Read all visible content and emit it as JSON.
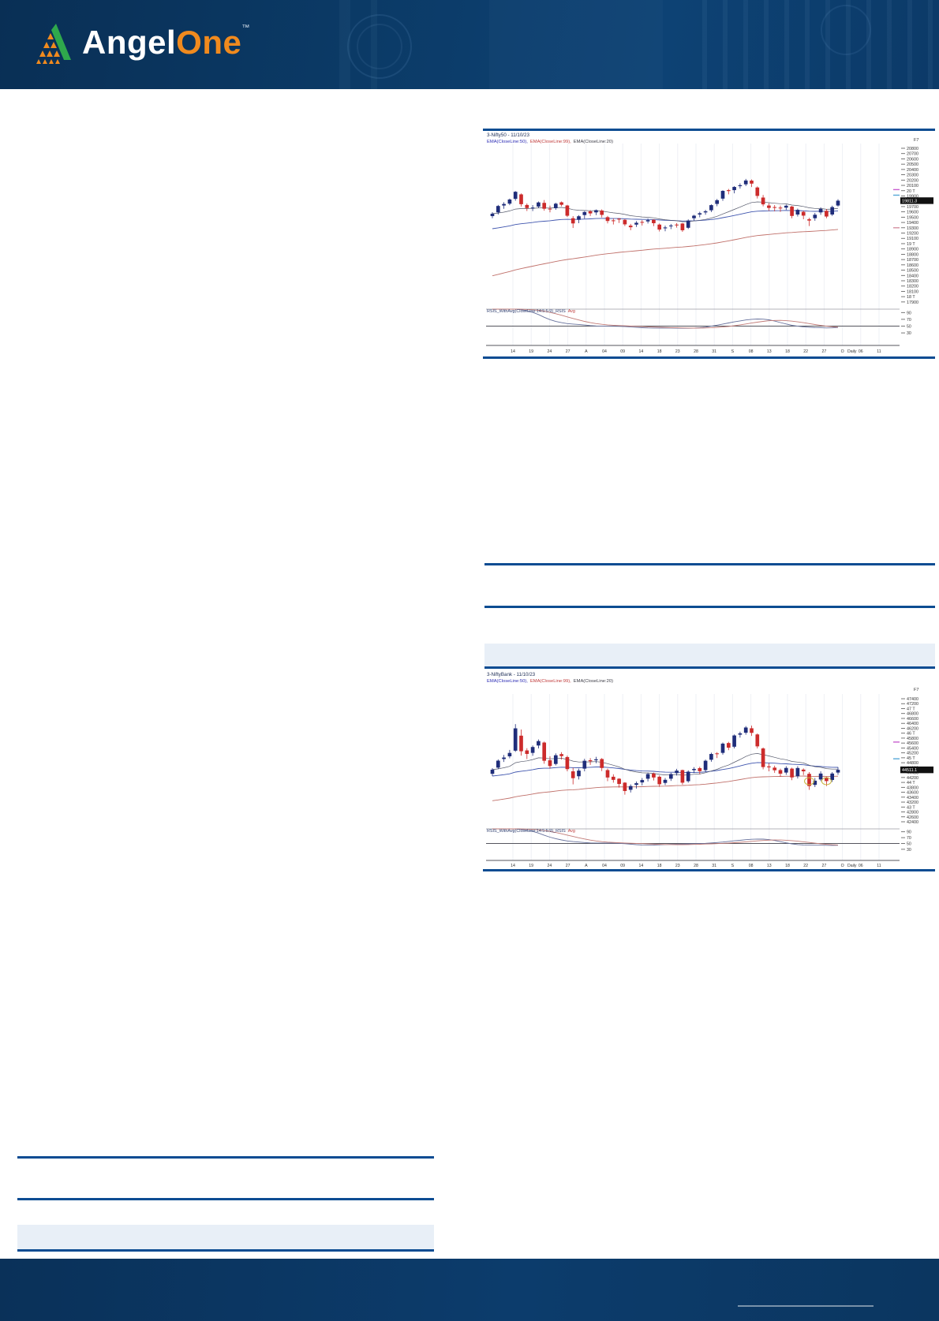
{
  "header": {
    "brand_angel": "Angel",
    "brand_one": "One",
    "tm": "™"
  },
  "chart_data": [
    {
      "type": "candlestick",
      "title": "3-Nifty50 - 11/10/23",
      "corner_label": "F7",
      "interval_label": "Daily",
      "last_price": "19811.3",
      "legend": [
        {
          "text": "EMA(CloseLine:50),",
          "color": "#2b2bb4"
        },
        {
          "text": "EMA(CloseLine:99),",
          "color": "#c03a3a"
        },
        {
          "text": "EMA(CloseLine:20)",
          "color": "#3c3c46"
        }
      ],
      "ylim": [
        17900,
        20850
      ],
      "y_tick_start": 20800,
      "y_tick_step": 100,
      "y_tick_count": 30,
      "x_labels": [
        "14",
        "19",
        "24",
        "27",
        "A",
        "04",
        "09",
        "14",
        "18",
        "23",
        "28",
        "31",
        "S",
        "08",
        "13",
        "18",
        "22",
        "27",
        "O",
        "06",
        "11"
      ],
      "rsi_label": "RSIS_WithAvg(CloseLine:14:5:5:9)_RSIS",
      "rsi_avg_label": "Avg",
      "rsi_ticks": [
        90,
        70,
        50,
        30
      ],
      "axis_markers": [
        {
          "price": 20020,
          "color": "#c95fd0"
        },
        {
          "price": 19915,
          "color": "#58a8d8"
        },
        {
          "price": 19300,
          "color": "#d490a0"
        }
      ],
      "ema_seeds": {
        "e50": 19270,
        "e99": 18370
      },
      "candles": [
        [
          19520,
          19595,
          19480,
          19565
        ],
        [
          19590,
          19731,
          19550,
          19711
        ],
        [
          19720,
          19782,
          19658,
          19749
        ],
        [
          19755,
          19851,
          19727,
          19833
        ],
        [
          19845,
          19992,
          19810,
          19979
        ],
        [
          19930,
          19948,
          19700,
          19745
        ],
        [
          19730,
          19758,
          19616,
          19672
        ],
        [
          19680,
          19729,
          19615,
          19681
        ],
        [
          19700,
          19795,
          19672,
          19778
        ],
        [
          19770,
          19823,
          19622,
          19659
        ],
        [
          19660,
          19717,
          19591,
          19646
        ],
        [
          19670,
          19772,
          19639,
          19754
        ],
        [
          19780,
          19795,
          19704,
          19734
        ],
        [
          19720,
          19732,
          19504,
          19527
        ],
        [
          19480,
          19520,
          19296,
          19382
        ],
        [
          19450,
          19538,
          19387,
          19517
        ],
        [
          19540,
          19615,
          19471,
          19597
        ],
        [
          19610,
          19634,
          19522,
          19571
        ],
        [
          19590,
          19645,
          19539,
          19632
        ],
        [
          19625,
          19647,
          19495,
          19543
        ],
        [
          19500,
          19524,
          19383,
          19428
        ],
        [
          19440,
          19477,
          19362,
          19435
        ],
        [
          19470,
          19481,
          19390,
          19465
        ],
        [
          19450,
          19462,
          19333,
          19365
        ],
        [
          19340,
          19373,
          19254,
          19310
        ],
        [
          19360,
          19426,
          19316,
          19394
        ],
        [
          19410,
          19443,
          19342,
          19396
        ],
        [
          19420,
          19474,
          19380,
          19444
        ],
        [
          19450,
          19459,
          19330,
          19386
        ],
        [
          19360,
          19380,
          19230,
          19266
        ],
        [
          19290,
          19340,
          19234,
          19306
        ],
        [
          19330,
          19372,
          19275,
          19342
        ],
        [
          19360,
          19388,
          19302,
          19347
        ],
        [
          19380,
          19390,
          19223,
          19253
        ],
        [
          19300,
          19458,
          19276,
          19435
        ],
        [
          19480,
          19545,
          19433,
          19528
        ],
        [
          19550,
          19603,
          19497,
          19574
        ],
        [
          19590,
          19638,
          19546,
          19611
        ],
        [
          19630,
          19741,
          19597,
          19727
        ],
        [
          19750,
          19843,
          19706,
          19820
        ],
        [
          19850,
          20008,
          19809,
          19996
        ],
        [
          20010,
          20033,
          19931,
          19993
        ],
        [
          20010,
          20085,
          19950,
          20070
        ],
        [
          20085,
          20137,
          20039,
          20103
        ],
        [
          20120,
          20222,
          20087,
          20192
        ],
        [
          20190,
          20213,
          20069,
          20133
        ],
        [
          20060,
          20080,
          19852,
          19901
        ],
        [
          19870,
          19918,
          19704,
          19742
        ],
        [
          19720,
          19762,
          19621,
          19674
        ],
        [
          19690,
          19729,
          19610,
          19675
        ],
        [
          19680,
          19720,
          19601,
          19665
        ],
        [
          19680,
          19738,
          19637,
          19716
        ],
        [
          19700,
          19714,
          19480,
          19523
        ],
        [
          19550,
          19662,
          19512,
          19638
        ],
        [
          19600,
          19623,
          19461,
          19529
        ],
        [
          19460,
          19488,
          19333,
          19436
        ],
        [
          19480,
          19580,
          19432,
          19546
        ],
        [
          19590,
          19685,
          19545,
          19654
        ],
        [
          19620,
          19654,
          19480,
          19512
        ],
        [
          19550,
          19717,
          19523,
          19690
        ],
        [
          19720,
          19839,
          19698,
          19811
        ]
      ]
    },
    {
      "type": "candlestick",
      "title": "3-NiftyBank - 11/10/23",
      "corner_label": "F7",
      "interval_label": "Daily",
      "last_price": "44511.1",
      "legend": [
        {
          "text": "EMA(CloseLine:50),",
          "color": "#2b2bb4"
        },
        {
          "text": "EMA(CloseLine:99),",
          "color": "#c03a3a"
        },
        {
          "text": "EMA(CloseLine:20)",
          "color": "#3c3c46"
        }
      ],
      "ylim": [
        42300,
        47500
      ],
      "y_tick_start": 47400,
      "y_tick_step": 200,
      "y_tick_count": 26,
      "x_labels": [
        "14",
        "19",
        "24",
        "27",
        "A",
        "04",
        "09",
        "14",
        "18",
        "23",
        "28",
        "31",
        "S",
        "08",
        "13",
        "18",
        "22",
        "27",
        "O",
        "06",
        "11"
      ],
      "rsi_label": "RSIS_WithAvg(CloseLine:14:5:5:9)_RSIS",
      "rsi_avg_label": "Avg",
      "rsi_ticks": [
        90,
        70,
        50,
        30
      ],
      "axis_markers": [
        {
          "price": 45640,
          "color": "#c95fd0"
        },
        {
          "price": 44960,
          "color": "#58a8d8"
        }
      ],
      "ema_seeds": {
        "e50": 44250,
        "e99": 43230
      },
      "ellipses": [
        {
          "i": 55,
          "price": 44050
        },
        {
          "i": 58,
          "price": 44050
        }
      ],
      "candles": [
        [
          44350,
          44580,
          44260,
          44517
        ],
        [
          44600,
          44935,
          44540,
          44884
        ],
        [
          44950,
          45115,
          44830,
          45011
        ],
        [
          45060,
          45320,
          44980,
          45198
        ],
        [
          45290,
          46369,
          45240,
          46197
        ],
        [
          45900,
          46150,
          45090,
          45266
        ],
        [
          45300,
          45390,
          44950,
          45158
        ],
        [
          45200,
          45500,
          45080,
          45438
        ],
        [
          45500,
          45747,
          45380,
          45680
        ],
        [
          45620,
          45660,
          44760,
          44880
        ],
        [
          44900,
          45060,
          44560,
          44666
        ],
        [
          44750,
          45180,
          44690,
          45103
        ],
        [
          45150,
          45230,
          44930,
          45069
        ],
        [
          45030,
          45090,
          44450,
          44540
        ],
        [
          44450,
          44590,
          43920,
          44172
        ],
        [
          44250,
          44560,
          44120,
          44480
        ],
        [
          44560,
          44960,
          44450,
          44880
        ],
        [
          44900,
          44990,
          44710,
          44860
        ],
        [
          44900,
          45040,
          44780,
          44938
        ],
        [
          44950,
          44990,
          44460,
          44586
        ],
        [
          44500,
          44560,
          44050,
          44200
        ],
        [
          44230,
          44330,
          43990,
          44104
        ],
        [
          44150,
          44170,
          43790,
          43938
        ],
        [
          43990,
          44010,
          43500,
          43651
        ],
        [
          43700,
          43920,
          43590,
          43851
        ],
        [
          43900,
          44040,
          43750,
          43967
        ],
        [
          44000,
          44180,
          43880,
          44096
        ],
        [
          44150,
          44400,
          44040,
          44338
        ],
        [
          44360,
          44400,
          44080,
          44200
        ],
        [
          44230,
          44280,
          43820,
          43926
        ],
        [
          43980,
          44180,
          43890,
          44105
        ],
        [
          44150,
          44390,
          44060,
          44339
        ],
        [
          44380,
          44550,
          44280,
          44479
        ],
        [
          44500,
          44520,
          43910,
          43989
        ],
        [
          44050,
          44490,
          43990,
          44436
        ],
        [
          44500,
          44620,
          44380,
          44548
        ],
        [
          44580,
          44640,
          44330,
          44456
        ],
        [
          44500,
          44930,
          44420,
          44880
        ],
        [
          44920,
          45210,
          44840,
          45156
        ],
        [
          45180,
          45230,
          44990,
          45156
        ],
        [
          45200,
          45620,
          45130,
          45576
        ],
        [
          45600,
          45650,
          45310,
          45412
        ],
        [
          45450,
          45950,
          45380,
          45908
        ],
        [
          45940,
          46060,
          45820,
          45994
        ],
        [
          46020,
          46290,
          45940,
          46231
        ],
        [
          46200,
          46310,
          45890,
          46014
        ],
        [
          45950,
          45990,
          45380,
          45465
        ],
        [
          45380,
          45420,
          44530,
          44624
        ],
        [
          44650,
          44780,
          44450,
          44612
        ],
        [
          44600,
          44680,
          44390,
          44495
        ],
        [
          44500,
          44560,
          44230,
          44355
        ],
        [
          44400,
          44660,
          44310,
          44588
        ],
        [
          44560,
          44600,
          44090,
          44203
        ],
        [
          44250,
          44660,
          44160,
          44585
        ],
        [
          44520,
          44570,
          44300,
          44452
        ],
        [
          44350,
          44420,
          43700,
          43851
        ],
        [
          43900,
          44180,
          43810,
          44069
        ],
        [
          44120,
          44450,
          44050,
          44360
        ],
        [
          44200,
          44230,
          43850,
          44054
        ],
        [
          44100,
          44420,
          44020,
          44360
        ],
        [
          44400,
          44620,
          44310,
          44511
        ]
      ]
    }
  ]
}
